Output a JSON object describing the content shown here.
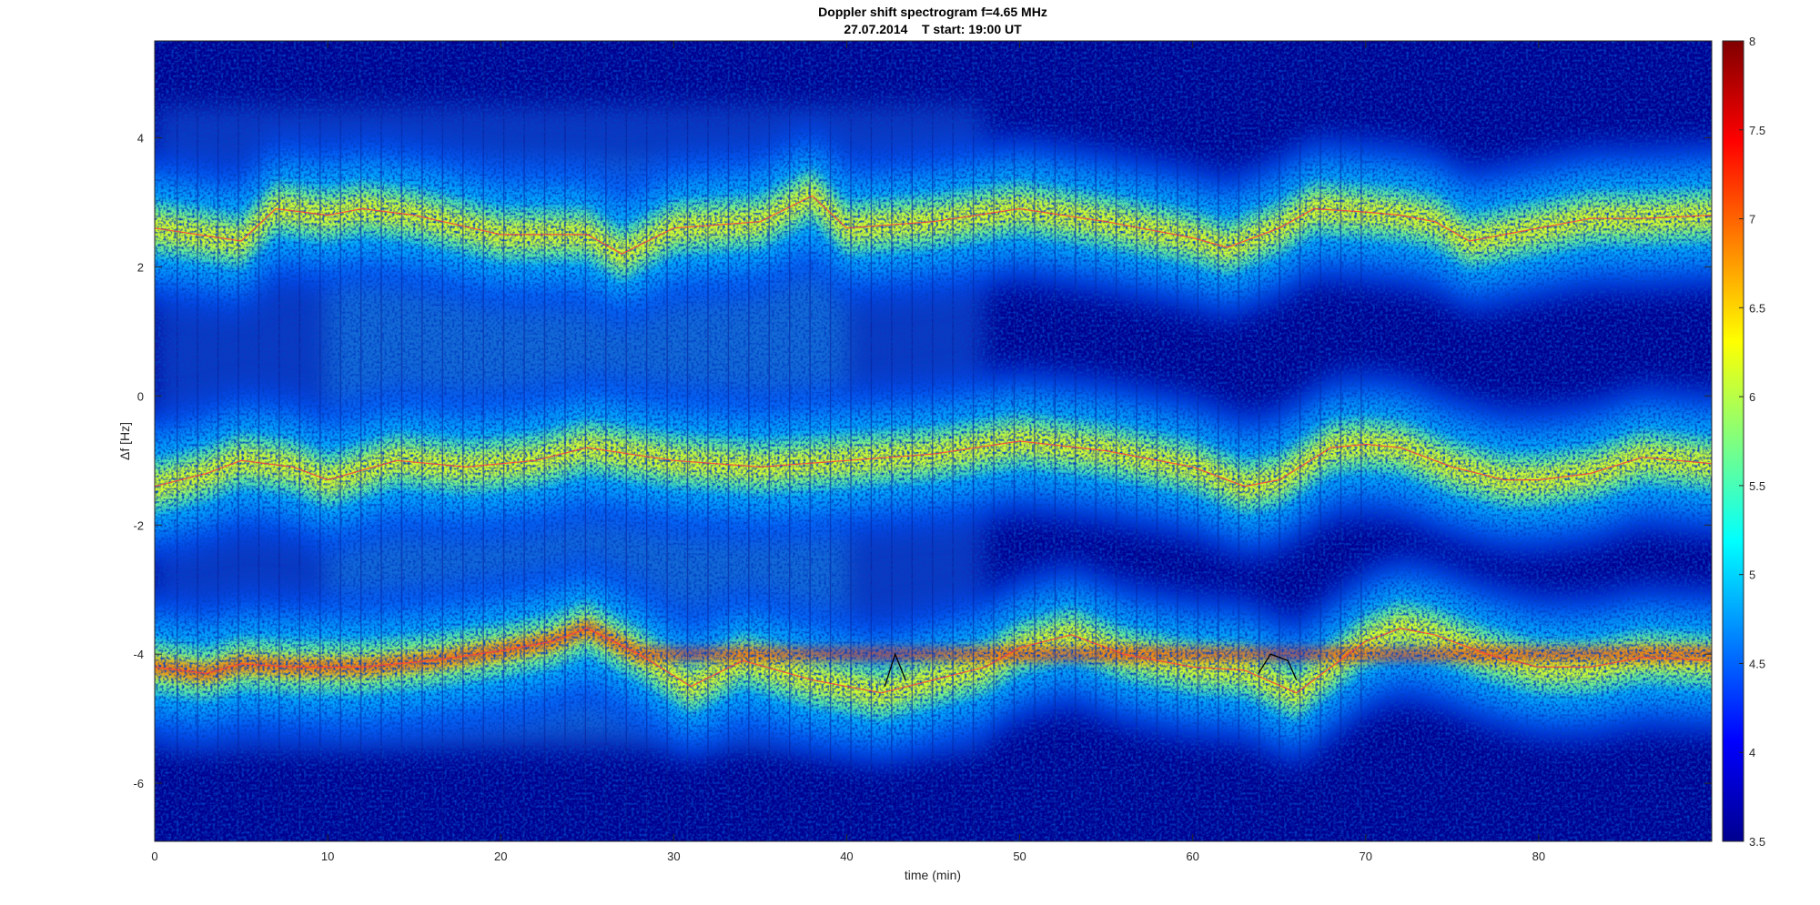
{
  "chart_data": {
    "type": "heatmap",
    "title": "Doppler shift spectrogram f=4.65 MHz",
    "subtitle": "27.07.2014    T start: 19:00 UT",
    "xlabel": "time (min)",
    "ylabel": "Δf [Hz]",
    "xlim": [
      0,
      90
    ],
    "ylim": [
      -6.9,
      5.5
    ],
    "xticks": [
      0,
      10,
      20,
      30,
      40,
      50,
      60,
      70,
      80
    ],
    "yticks": [
      -6,
      -4,
      -2,
      0,
      2,
      4
    ],
    "colorbar": {
      "limits": [
        3.5,
        8
      ],
      "ticks": [
        3.5,
        4,
        4.5,
        5,
        5.5,
        6,
        6.5,
        7,
        7.5,
        8
      ],
      "colormap": "jet"
    },
    "grid": false,
    "traces": [
      {
        "band": "upper",
        "points": [
          [
            0,
            2.6
          ],
          [
            5,
            2.4
          ],
          [
            7,
            2.9
          ],
          [
            10,
            2.8
          ],
          [
            12,
            2.9
          ],
          [
            15,
            2.8
          ],
          [
            20,
            2.5
          ],
          [
            25,
            2.5
          ],
          [
            27,
            2.2
          ],
          [
            30,
            2.6
          ],
          [
            35,
            2.7
          ],
          [
            38,
            3.1
          ],
          [
            40,
            2.6
          ],
          [
            45,
            2.7
          ],
          [
            50,
            2.9
          ],
          [
            55,
            2.7
          ],
          [
            60,
            2.45
          ],
          [
            62,
            2.3
          ],
          [
            65,
            2.6
          ],
          [
            67,
            2.9
          ],
          [
            70,
            2.85
          ],
          [
            72,
            2.8
          ],
          [
            74,
            2.7
          ],
          [
            76,
            2.4
          ],
          [
            78,
            2.5
          ],
          [
            80,
            2.6
          ],
          [
            83,
            2.75
          ],
          [
            86,
            2.75
          ],
          [
            90,
            2.8
          ]
        ]
      },
      {
        "band": "middle",
        "points": [
          [
            0,
            -1.4
          ],
          [
            3,
            -1.2
          ],
          [
            5,
            -1.0
          ],
          [
            8,
            -1.1
          ],
          [
            10,
            -1.3
          ],
          [
            14,
            -1.0
          ],
          [
            18,
            -1.1
          ],
          [
            22,
            -1.0
          ],
          [
            25,
            -0.8
          ],
          [
            30,
            -1.0
          ],
          [
            35,
            -1.1
          ],
          [
            40,
            -1.0
          ],
          [
            45,
            -0.9
          ],
          [
            50,
            -0.7
          ],
          [
            55,
            -0.85
          ],
          [
            60,
            -1.1
          ],
          [
            63,
            -1.4
          ],
          [
            65,
            -1.3
          ],
          [
            68,
            -0.8
          ],
          [
            70,
            -0.75
          ],
          [
            72,
            -0.8
          ],
          [
            75,
            -1.1
          ],
          [
            78,
            -1.3
          ],
          [
            80,
            -1.3
          ],
          [
            83,
            -1.2
          ],
          [
            86,
            -0.95
          ],
          [
            90,
            -1.05
          ]
        ]
      },
      {
        "band": "lower",
        "points": [
          [
            0,
            -4.2
          ],
          [
            3,
            -4.3
          ],
          [
            5,
            -4.15
          ],
          [
            8,
            -4.2
          ],
          [
            12,
            -4.2
          ],
          [
            16,
            -4.1
          ],
          [
            20,
            -3.95
          ],
          [
            23,
            -3.8
          ],
          [
            25,
            -3.6
          ],
          [
            28,
            -4.0
          ],
          [
            31,
            -4.5
          ],
          [
            34,
            -4.1
          ],
          [
            38,
            -4.4
          ],
          [
            42,
            -4.6
          ],
          [
            45,
            -4.4
          ],
          [
            48,
            -4.2
          ],
          [
            50,
            -3.9
          ],
          [
            53,
            -3.7
          ],
          [
            56,
            -4.0
          ],
          [
            60,
            -4.2
          ],
          [
            63,
            -4.25
          ],
          [
            66,
            -4.6
          ],
          [
            68,
            -4.2
          ],
          [
            70,
            -3.8
          ],
          [
            72,
            -3.6
          ],
          [
            74,
            -3.7
          ],
          [
            77,
            -4.0
          ],
          [
            80,
            -4.2
          ],
          [
            83,
            -4.2
          ],
          [
            86,
            -4.05
          ],
          [
            90,
            -4.1
          ]
        ]
      }
    ],
    "black_markers": [
      {
        "points": [
          [
            42.2,
            -4.5
          ],
          [
            42.8,
            -4.0
          ],
          [
            43.4,
            -4.4
          ]
        ]
      },
      {
        "points": [
          [
            63.8,
            -4.3
          ],
          [
            64.5,
            -4.0
          ],
          [
            65.5,
            -4.1
          ],
          [
            66.0,
            -4.4
          ]
        ]
      }
    ]
  }
}
